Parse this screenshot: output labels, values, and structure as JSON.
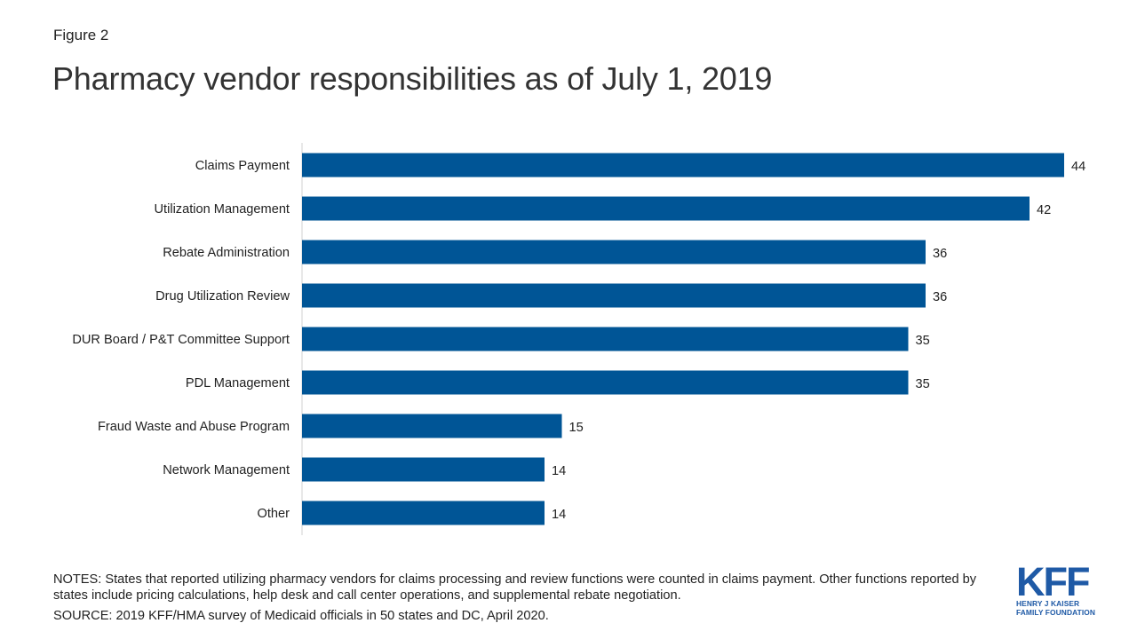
{
  "figure_label": "Figure 2",
  "title": "Pharmacy vendor responsibilities as of July 1, 2019",
  "chart_data": {
    "type": "bar",
    "orientation": "horizontal",
    "title": "Pharmacy vendor responsibilities as of July 1, 2019",
    "categories": [
      "Claims Payment",
      "Utilization Management",
      "Rebate Administration",
      "Drug Utilization Review",
      "DUR Board / P&T Committee Support",
      "PDL Management",
      "Fraud Waste and Abuse Program",
      "Network Management",
      "Other"
    ],
    "values": [
      44,
      42,
      36,
      36,
      35,
      35,
      15,
      14,
      14
    ],
    "xlim": [
      0,
      44
    ],
    "grid": false,
    "bar_color": "#005596"
  },
  "notes": "NOTES: States that reported utilizing pharmacy vendors for claims processing and review functions were counted in claims payment. Other functions reported by states include pricing calculations,  help desk and call center operations, and supplemental rebate negotiation.",
  "source": "SOURCE: 2019 KFF/HMA survey  of Medicaid officials in 50 states and DC, April 2020.",
  "logo": {
    "main": "KFF",
    "line1": "HENRY J KAISER",
    "line2": "FAMILY FOUNDATION",
    "color": "#1f5aa6"
  }
}
